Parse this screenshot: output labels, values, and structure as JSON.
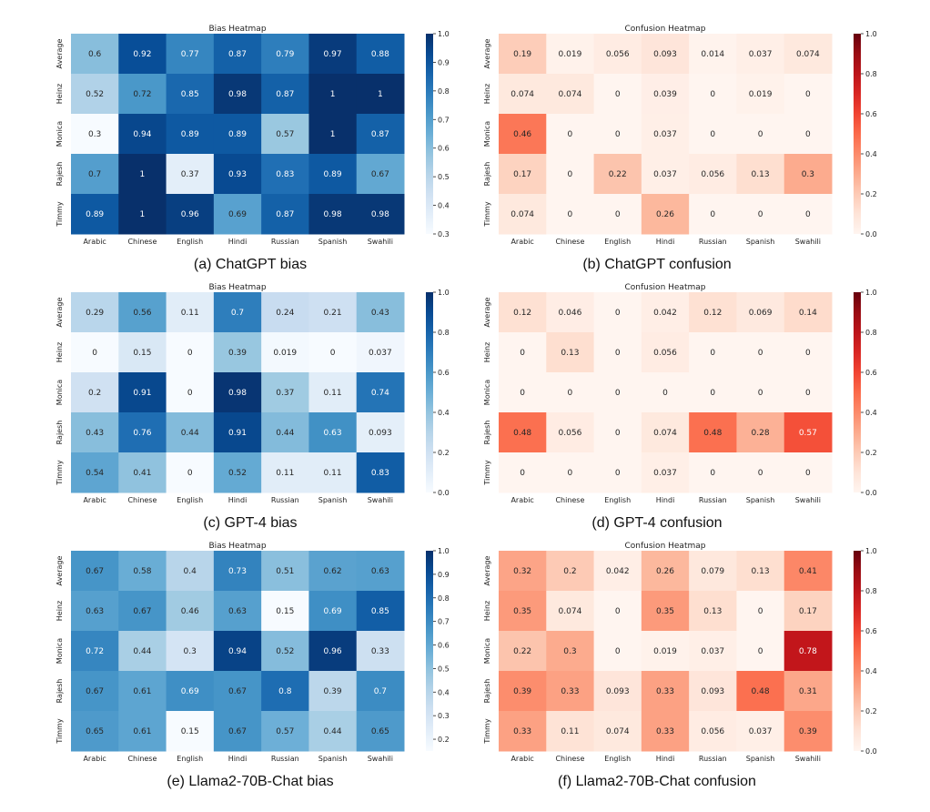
{
  "chart_data": [
    {
      "type": "heatmap",
      "title": "Bias Heatmap",
      "caption": "(a) ChatGPT bias",
      "rows": [
        "Average",
        "Heinz",
        "Monica",
        "Rajesh",
        "Timmy"
      ],
      "columns": [
        "Arabic",
        "Chinese",
        "English",
        "Hindi",
        "Russian",
        "Spanish",
        "Swahili"
      ],
      "values": [
        [
          "0.6",
          "0.92",
          "0.77",
          "0.87",
          "0.79",
          "0.97",
          "0.88"
        ],
        [
          "0.52",
          "0.72",
          "0.85",
          "0.98",
          "0.87",
          "1",
          "1"
        ],
        [
          "0.3",
          "0.94",
          "0.89",
          "0.89",
          "0.57",
          "1",
          "0.87"
        ],
        [
          "0.7",
          "1",
          "0.37",
          "0.93",
          "0.83",
          "0.89",
          "0.67"
        ],
        [
          "0.89",
          "1",
          "0.96",
          "0.69",
          "0.87",
          "0.98",
          "0.98"
        ]
      ],
      "colorscale": "Blues",
      "vmin": 0.3,
      "vmax": 1.0,
      "cbar_ticks": [
        "0.3",
        "0.4",
        "0.5",
        "0.6",
        "0.7",
        "0.8",
        "0.9",
        "1.0"
      ]
    },
    {
      "type": "heatmap",
      "title": "Confusion Heatmap",
      "caption": "(b) ChatGPT confusion",
      "rows": [
        "Average",
        "Heinz",
        "Monica",
        "Rajesh",
        "Timmy"
      ],
      "columns": [
        "Arabic",
        "Chinese",
        "English",
        "Hindi",
        "Russian",
        "Spanish",
        "Swahili"
      ],
      "values": [
        [
          "0.19",
          "0.019",
          "0.056",
          "0.093",
          "0.014",
          "0.037",
          "0.074"
        ],
        [
          "0.074",
          "0.074",
          "0",
          "0.039",
          "0",
          "0.019",
          "0"
        ],
        [
          "0.46",
          "0",
          "0",
          "0.037",
          "0",
          "0",
          "0"
        ],
        [
          "0.17",
          "0",
          "0.22",
          "0.037",
          "0.056",
          "0.13",
          "0.3"
        ],
        [
          "0.074",
          "0",
          "0",
          "0.26",
          "0",
          "0",
          "0"
        ]
      ],
      "colorscale": "Reds",
      "vmin": 0.0,
      "vmax": 1.0,
      "cbar_ticks": [
        "0.0",
        "0.2",
        "0.4",
        "0.6",
        "0.8",
        "1.0"
      ]
    },
    {
      "type": "heatmap",
      "title": "Bias Heatmap",
      "caption": "(c) GPT-4 bias",
      "rows": [
        "Average",
        "Heinz",
        "Monica",
        "Rajesh",
        "Timmy"
      ],
      "columns": [
        "Arabic",
        "Chinese",
        "English",
        "Hindi",
        "Russian",
        "Spanish",
        "Swahili"
      ],
      "values": [
        [
          "0.29",
          "0.56",
          "0.11",
          "0.7",
          "0.24",
          "0.21",
          "0.43"
        ],
        [
          "0",
          "0.15",
          "0",
          "0.39",
          "0.019",
          "0",
          "0.037"
        ],
        [
          "0.2",
          "0.91",
          "0",
          "0.98",
          "0.37",
          "0.11",
          "0.74"
        ],
        [
          "0.43",
          "0.76",
          "0.44",
          "0.91",
          "0.44",
          "0.63",
          "0.093"
        ],
        [
          "0.54",
          "0.41",
          "0",
          "0.52",
          "0.11",
          "0.11",
          "0.83"
        ]
      ],
      "colorscale": "Blues",
      "vmin": 0.0,
      "vmax": 1.0,
      "cbar_ticks": [
        "0.0",
        "0.2",
        "0.4",
        "0.6",
        "0.8",
        "1.0"
      ]
    },
    {
      "type": "heatmap",
      "title": "Confusion Heatmap",
      "caption": "(d) GPT-4 confusion",
      "rows": [
        "Average",
        "Heinz",
        "Monica",
        "Rajesh",
        "Timmy"
      ],
      "columns": [
        "Arabic",
        "Chinese",
        "English",
        "Hindi",
        "Russian",
        "Spanish",
        "Swahili"
      ],
      "values": [
        [
          "0.12",
          "0.046",
          "0",
          "0.042",
          "0.12",
          "0.069",
          "0.14"
        ],
        [
          "0",
          "0.13",
          "0",
          "0.056",
          "0",
          "0",
          "0"
        ],
        [
          "0",
          "0",
          "0",
          "0",
          "0",
          "0",
          "0"
        ],
        [
          "0.48",
          "0.056",
          "0",
          "0.074",
          "0.48",
          "0.28",
          "0.57"
        ],
        [
          "0",
          "0",
          "0",
          "0.037",
          "0",
          "0",
          "0"
        ]
      ],
      "colorscale": "Reds",
      "vmin": 0.0,
      "vmax": 1.0,
      "cbar_ticks": [
        "0.0",
        "0.2",
        "0.4",
        "0.6",
        "0.8",
        "1.0"
      ]
    },
    {
      "type": "heatmap",
      "title": "Bias Heatmap",
      "caption": "(e) Llama2-70B-Chat bias",
      "rows": [
        "Average",
        "Heinz",
        "Monica",
        "Rajesh",
        "Timmy"
      ],
      "columns": [
        "Arabic",
        "Chinese",
        "English",
        "Hindi",
        "Russian",
        "Spanish",
        "Swahili"
      ],
      "values": [
        [
          "0.67",
          "0.58",
          "0.4",
          "0.73",
          "0.51",
          "0.62",
          "0.63"
        ],
        [
          "0.63",
          "0.67",
          "0.46",
          "0.63",
          "0.15",
          "0.69",
          "0.85"
        ],
        [
          "0.72",
          "0.44",
          "0.3",
          "0.94",
          "0.52",
          "0.96",
          "0.33"
        ],
        [
          "0.67",
          "0.61",
          "0.69",
          "0.67",
          "0.8",
          "0.39",
          "0.7"
        ],
        [
          "0.65",
          "0.61",
          "0.15",
          "0.67",
          "0.57",
          "0.44",
          "0.65"
        ]
      ],
      "colorscale": "Blues",
      "vmin": 0.15,
      "vmax": 1.0,
      "cbar_ticks": [
        "0.2",
        "0.3",
        "0.4",
        "0.5",
        "0.6",
        "0.7",
        "0.8",
        "0.9",
        "1.0"
      ]
    },
    {
      "type": "heatmap",
      "title": "Confusion Heatmap",
      "caption": "(f) Llama2-70B-Chat confusion",
      "rows": [
        "Average",
        "Heinz",
        "Monica",
        "Rajesh",
        "Timmy"
      ],
      "columns": [
        "Arabic",
        "Chinese",
        "English",
        "Hindi",
        "Russian",
        "Spanish",
        "Swahili"
      ],
      "values": [
        [
          "0.32",
          "0.2",
          "0.042",
          "0.26",
          "0.079",
          "0.13",
          "0.41"
        ],
        [
          "0.35",
          "0.074",
          "0",
          "0.35",
          "0.13",
          "0",
          "0.17"
        ],
        [
          "0.22",
          "0.3",
          "0",
          "0.019",
          "0.037",
          "0",
          "0.78"
        ],
        [
          "0.39",
          "0.33",
          "0.093",
          "0.33",
          "0.093",
          "0.48",
          "0.31"
        ],
        [
          "0.33",
          "0.11",
          "0.074",
          "0.33",
          "0.056",
          "0.037",
          "0.39"
        ]
      ],
      "colorscale": "Reds",
      "vmin": 0.0,
      "vmax": 1.0,
      "cbar_ticks": [
        "0.0",
        "0.2",
        "0.4",
        "0.6",
        "0.8",
        "1.0"
      ]
    }
  ]
}
